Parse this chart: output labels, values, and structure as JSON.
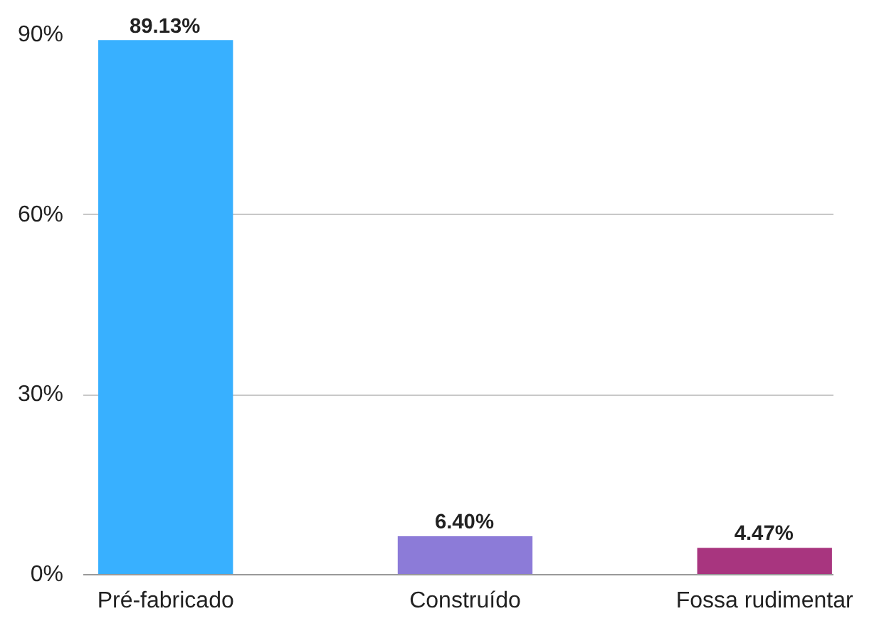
{
  "chart_data": {
    "type": "bar",
    "categories": [
      "Pré-fabricado",
      "Construído",
      "Fossa rudimentar"
    ],
    "values": [
      89.13,
      6.4,
      4.47
    ],
    "colors": [
      "#38b0ff",
      "#8c7bd8",
      "#a8357f"
    ],
    "value_labels": [
      "89.13%",
      "6.40%",
      "4.47%"
    ],
    "ylim": [
      0,
      90
    ],
    "yticks": [
      {
        "value": 0,
        "label": "0%"
      },
      {
        "value": 30,
        "label": "30%"
      },
      {
        "value": 60,
        "label": "60%"
      },
      {
        "value": 90,
        "label": "90%"
      }
    ],
    "grid": "y"
  }
}
